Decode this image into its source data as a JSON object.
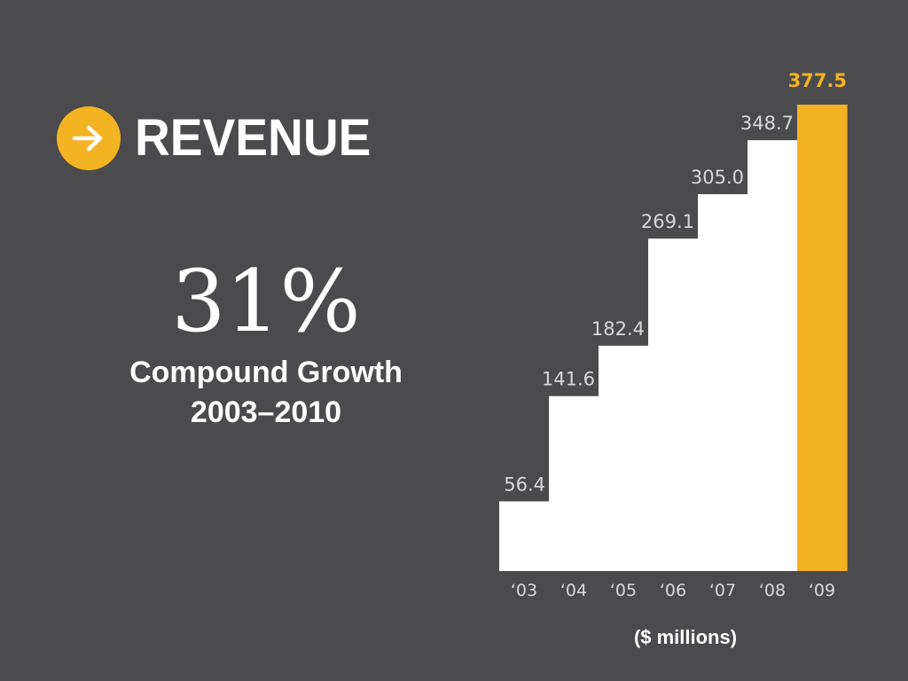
{
  "title": "REVENUE",
  "icon": "arrow-right-icon",
  "colors": {
    "background": "#4b4b4d",
    "bars": "#ffffff",
    "highlight": "#f4b322",
    "text": "#ffffff",
    "muted_text": "#d8d8d8"
  },
  "growth": {
    "value": "31%",
    "label": "Compound Growth",
    "range": "2003–2010"
  },
  "chart_data": {
    "type": "bar",
    "categories": [
      "‘03",
      "‘04",
      "‘05",
      "‘06",
      "‘07",
      "‘08",
      "‘09"
    ],
    "values": [
      56.4,
      141.6,
      182.4,
      269.1,
      305.0,
      348.7,
      377.5
    ],
    "labels": [
      "56.4",
      "141.6",
      "182.4",
      "269.1",
      "305.0",
      "348.7",
      "377.5"
    ],
    "highlight_index": 6,
    "unit": "($ millions)",
    "xlabel": "",
    "ylabel": "",
    "grid": false,
    "ylim": [
      0,
      377.5
    ]
  }
}
